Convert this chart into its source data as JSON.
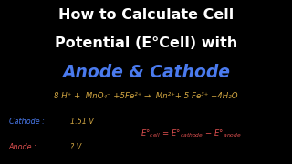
{
  "background_color": "#000000",
  "title_line1": "How to Calculate Cell",
  "title_line2": "Potential (E°Cell) with",
  "title_color": "#ffffff",
  "subtitle": "Anode & Cathode",
  "subtitle_color": "#4a7aee",
  "equation_color": "#d4a843",
  "equation": "8 H⁺ +  MnO₄⁻ +5Fe²⁺ →  Mn²⁺+ 5 Fe³⁺ +4H₂O",
  "cathode_label": "Cathode :",
  "cathode_value": "1.51 V",
  "anode_label": "Anode :",
  "anode_value": "? V",
  "cathode_color": "#4a7aee",
  "anode_color": "#e05050",
  "formula_color": "#e05050",
  "title_fontsize": 11.5,
  "subtitle_fontsize": 13.5,
  "eq_fontsize": 6.2,
  "label_fontsize": 5.8,
  "formula_fontsize": 6.2
}
